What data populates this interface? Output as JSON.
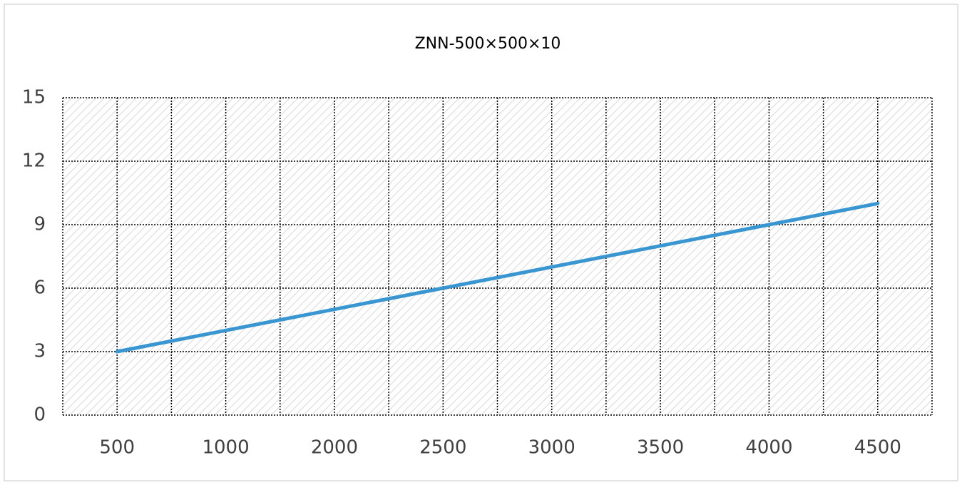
{
  "chart_data": {
    "type": "line",
    "title": "ZNN-500×500×10",
    "categories": [
      "500",
      "1000",
      "2000",
      "2500",
      "3000",
      "3500",
      "4000",
      "4500"
    ],
    "values": [
      3,
      4,
      5,
      6,
      7,
      8,
      9,
      10
    ],
    "color": "#3a96d0",
    "ylim": [
      0,
      15
    ],
    "yticks": [
      0,
      3,
      6,
      9,
      12,
      15
    ],
    "grid": true
  }
}
